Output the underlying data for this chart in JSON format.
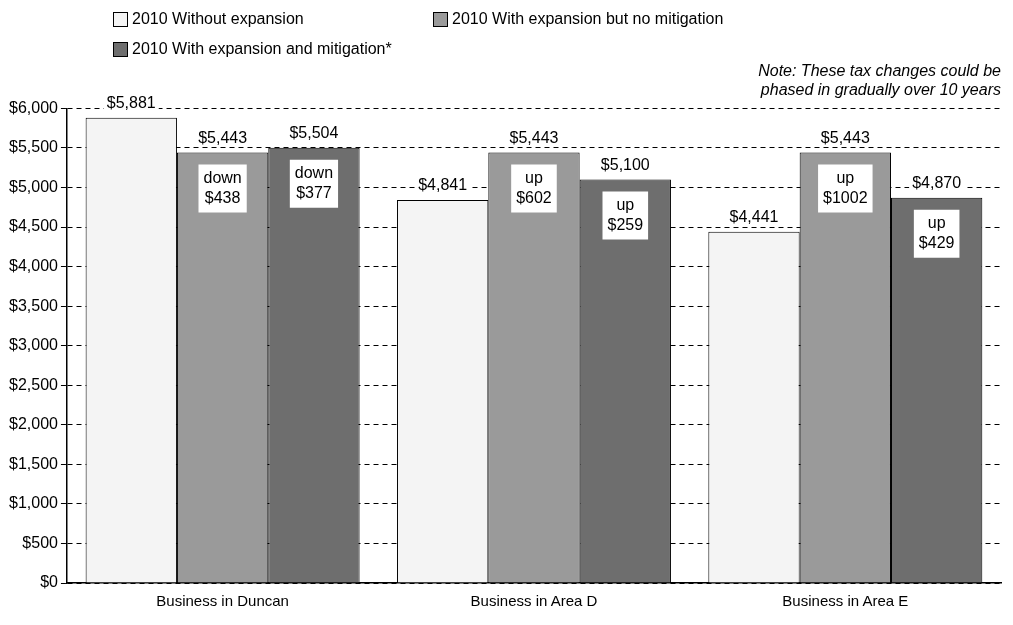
{
  "chart_data": {
    "type": "bar",
    "categories": [
      "Business in Duncan",
      "Business in Area D",
      "Business in Area E"
    ],
    "series": [
      {
        "name": "2010 Without expansion",
        "color": "#f4f4f4",
        "values": [
          5881,
          4841,
          4441
        ],
        "value_labels": [
          "$5,881",
          "$4,841",
          "$4,441"
        ]
      },
      {
        "name": "2010 With expansion but no mitigation",
        "color": "#9a9a9a",
        "values": [
          5443,
          5443,
          5443
        ],
        "value_labels": [
          "$5,443",
          "$5,443",
          "$5,443"
        ]
      },
      {
        "name": "2010 With expansion and mitigation*",
        "color": "#6e6e6e",
        "values": [
          5504,
          5100,
          4870
        ],
        "value_labels": [
          "$5,504",
          "$5,100",
          "$4,870"
        ]
      }
    ],
    "ylim": [
      0,
      6000
    ],
    "yticks": [
      {
        "value": 0,
        "label": "$0"
      },
      {
        "value": 500,
        "label": "$500"
      },
      {
        "value": 1000,
        "label": "$1,000"
      },
      {
        "value": 1500,
        "label": "$1,500"
      },
      {
        "value": 2000,
        "label": "$2,000"
      },
      {
        "value": 2500,
        "label": "$2,500"
      },
      {
        "value": 3000,
        "label": "$3,000"
      },
      {
        "value": 3500,
        "label": "$3,500"
      },
      {
        "value": 4000,
        "label": "$4,000"
      },
      {
        "value": 4500,
        "label": "$4,500"
      },
      {
        "value": 5000,
        "label": "$5,000"
      },
      {
        "value": 5500,
        "label": "$5,500"
      },
      {
        "value": 6000,
        "label": "$6,000"
      }
    ],
    "grid": "y",
    "line_style": "dashed",
    "legend": "top left",
    "annotations": [
      "Note: These tax changes could be phased in gradually over 10 years",
      "down $438",
      "down $377",
      "up $602",
      "up $259",
      "up $1002",
      "up $429"
    ]
  }
}
